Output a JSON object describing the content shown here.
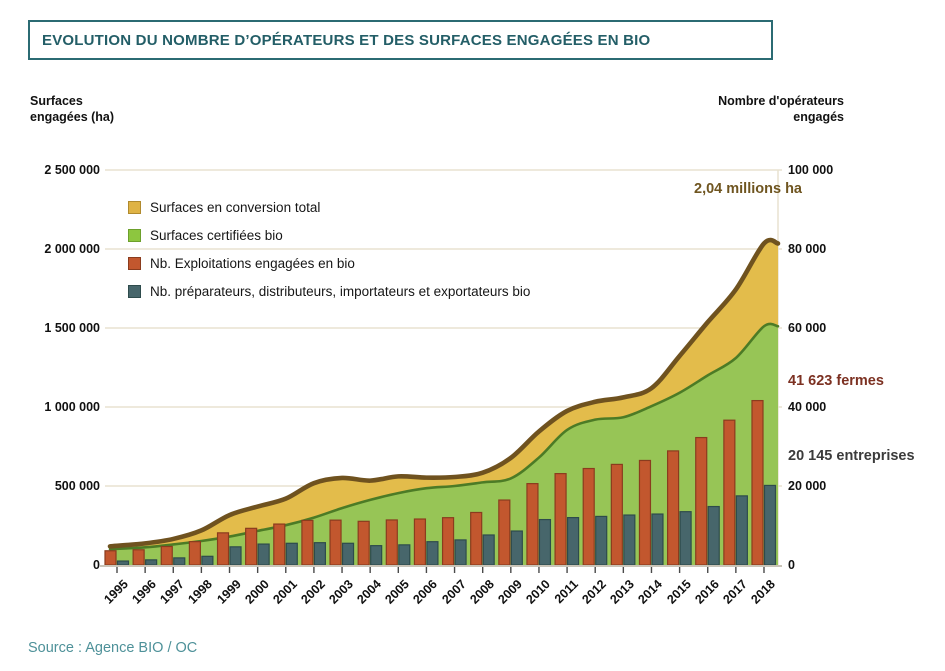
{
  "title": "EVOLUTION DU NOMBRE D’OPÉRATEURS ET DES SURFACES ENGAGÉES EN BIO",
  "source": "Source : Agence BIO / OC",
  "left_axis": {
    "title": "Surfaces\nengagées (ha)",
    "tick_labels": [
      "2 500 000",
      "2 000 000",
      "1 500 000",
      "1 000 000",
      "500 000",
      "0"
    ],
    "tick_values": [
      2500000,
      2000000,
      1500000,
      1000000,
      500000,
      0
    ]
  },
  "right_axis": {
    "title": "Nombre d'opérateurs\nengagés",
    "tick_labels": [
      "100 000",
      "80 000",
      "60 000",
      "40 000",
      "20 000",
      "0"
    ],
    "tick_values": [
      100000,
      80000,
      60000,
      40000,
      20000,
      0
    ]
  },
  "legend": {
    "items": [
      {
        "label": "Surfaces en conversion total",
        "color": "#dfb345",
        "border": "#b08a2e"
      },
      {
        "label": "Surfaces certifiées bio",
        "color": "#8dc63f",
        "border": "#6da02c"
      },
      {
        "label": "Nb. Exploitations engagées en bio",
        "color": "#c2572e",
        "border": "#8a3c1e"
      },
      {
        "label": "Nb. préparateurs, distributeurs, importateurs et exportateurs bio",
        "color": "#47666b",
        "border": "#2e4b4c"
      }
    ]
  },
  "annotations": {
    "total_surface": "2,04 millions ha",
    "farms": "41 623 fermes",
    "enterprises": "20 145 entreprises"
  },
  "colors": {
    "title_teal": "#235e67",
    "source_teal": "#4e9199",
    "grid": "#e9e2d0",
    "baseline": "#c9c4b8",
    "area_conversion": "#e3bc4b",
    "area_certified": "#97c556",
    "line_total": "#6f521f",
    "line_certified": "#4c7b26",
    "bar_farms": "#c2572e",
    "bar_farms_border": "#8a3c1e",
    "bar_enterprises": "#47666b",
    "bar_enterprises_border": "#2e4b4c"
  },
  "chart_data": {
    "type": "combo (stacked area + grouped bar)",
    "title": "Evolution du nombre d'opérateurs et des surfaces engagées en bio",
    "x": [
      "1995",
      "1996",
      "1997",
      "1998",
      "1999",
      "2000",
      "2001",
      "2002",
      "2003",
      "2004",
      "2005",
      "2006",
      "2007",
      "2008",
      "2009",
      "2010",
      "2011",
      "2012",
      "2013",
      "2014",
      "2015",
      "2016",
      "2017",
      "2018"
    ],
    "left_axis_range": [
      0,
      2500000
    ],
    "right_axis_range": [
      0,
      100000
    ],
    "grid": "horizontal",
    "legend_position": "top-left inside plot",
    "series": [
      {
        "name": "Surfaces certifiées bio",
        "type": "area",
        "axis": "left",
        "unit": "ha",
        "values": [
          100000,
          112000,
          130000,
          152000,
          180000,
          216000,
          252000,
          300000,
          360000,
          412000,
          455000,
          486000,
          500000,
          523000,
          548000,
          680000,
          855000,
          920000,
          935000,
          1005000,
          1090000,
          1200000,
          1310000,
          1511000
        ]
      },
      {
        "name": "Surfaces en conversion total",
        "type": "area",
        "axis": "left",
        "unit": "ha",
        "stacked_on": "Surfaces certifiées bio",
        "values": [
          18000,
          25000,
          35000,
          67000,
          136000,
          154000,
          168000,
          218000,
          191000,
          122000,
          106000,
          67000,
          57000,
          61000,
          130000,
          165000,
          120000,
          113000,
          126000,
          114000,
          233000,
          337000,
          434000,
          524000
        ]
      },
      {
        "name": "Nb. Exploitations engagées en bio",
        "type": "bar",
        "axis": "right",
        "unit": "exploitations",
        "values": [
          3602,
          3854,
          4680,
          5914,
          8140,
          9283,
          10364,
          11288,
          11359,
          11059,
          11402,
          11640,
          11978,
          13298,
          16446,
          20604,
          23135,
          24425,
          25467,
          26466,
          28884,
          32264,
          36664,
          41623
        ]
      },
      {
        "name": "Nb. préparateurs, distributeurs, importateurs et exportateurs bio",
        "type": "bar",
        "axis": "right",
        "unit": "entreprises",
        "values": [
          1000,
          1300,
          1800,
          2200,
          4600,
          5300,
          5500,
          5650,
          5500,
          4900,
          5100,
          5900,
          6350,
          7600,
          8600,
          11500,
          12000,
          12300,
          12650,
          12900,
          13500,
          14800,
          17500,
          20145
        ]
      }
    ],
    "annotations": [
      {
        "text": "2,04 millions ha",
        "refers_to": "total surfaces engagées 2018"
      },
      {
        "text": "41 623 fermes",
        "refers_to": "exploitations engagées 2018"
      },
      {
        "text": "20 145 entreprises",
        "refers_to": "préparateurs, distributeurs, importateurs et exportateurs 2018"
      }
    ]
  }
}
